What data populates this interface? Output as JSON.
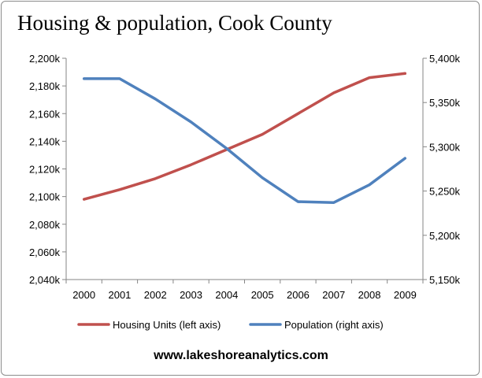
{
  "chart_data": {
    "type": "line",
    "title": "Housing & population, Cook County",
    "categories": [
      "2000",
      "2001",
      "2002",
      "2003",
      "2004",
      "2005",
      "2006",
      "2007",
      "2008",
      "2009"
    ],
    "series": [
      {
        "name": "Housing Units (left axis)",
        "axis": "left",
        "color": "#c0504d",
        "values": [
          2098,
          2105,
          2113,
          2123,
          2134,
          2145,
          2160,
          2175,
          2186,
          2189
        ]
      },
      {
        "name": "Population (right axis)",
        "axis": "right",
        "color": "#4f81bd",
        "values": [
          5377,
          5377,
          5354,
          5328,
          5298,
          5265,
          5238,
          5237,
          5257,
          5287
        ]
      }
    ],
    "y_left": {
      "min": 2040,
      "max": 2200,
      "tick_labels": [
        "2,040k",
        "2,060k",
        "2,080k",
        "2,100k",
        "2,120k",
        "2,140k",
        "2,160k",
        "2,180k",
        "2,200k"
      ]
    },
    "y_right": {
      "min": 5150,
      "max": 5400,
      "tick_labels": [
        "5,150k",
        "5,200k",
        "5,250k",
        "5,300k",
        "5,350k",
        "5,400k"
      ]
    },
    "grid": false,
    "legend_position": "bottom"
  },
  "footer_text": "www.lakeshoreanalytics.com"
}
